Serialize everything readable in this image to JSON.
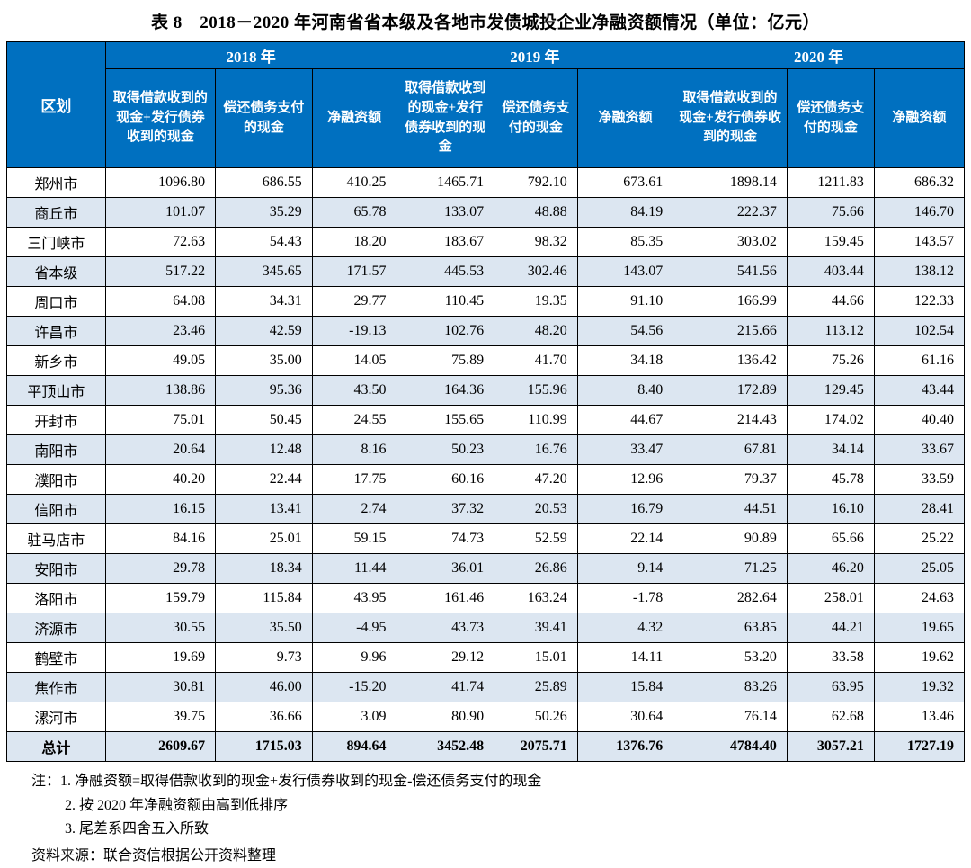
{
  "title": "表 8　2018－2020 年河南省省本级及各地市发债城投企业净融资额情况（单位：亿元）",
  "table": {
    "region_header": "区划",
    "year_groups": [
      {
        "year": "2018 年",
        "columns": [
          "取得借款收到的现金+发行债券收到的现金",
          "偿还债务支付的现金",
          "净融资额"
        ]
      },
      {
        "year": "2019 年",
        "columns": [
          "取得借款收到的现金+发行债券收到的现金",
          "偿还债务支付的现金",
          "净融资额"
        ]
      },
      {
        "year": "2020 年",
        "columns": [
          "取得借款收到的现金+发行债券收到的现金",
          "偿还债务支付的现金",
          "净融资额"
        ]
      }
    ],
    "rows": [
      {
        "region": "郑州市",
        "values": [
          "1096.80",
          "686.55",
          "410.25",
          "1465.71",
          "792.10",
          "673.61",
          "1898.14",
          "1211.83",
          "686.32"
        ]
      },
      {
        "region": "商丘市",
        "values": [
          "101.07",
          "35.29",
          "65.78",
          "133.07",
          "48.88",
          "84.19",
          "222.37",
          "75.66",
          "146.70"
        ]
      },
      {
        "region": "三门峡市",
        "values": [
          "72.63",
          "54.43",
          "18.20",
          "183.67",
          "98.32",
          "85.35",
          "303.02",
          "159.45",
          "143.57"
        ]
      },
      {
        "region": "省本级",
        "values": [
          "517.22",
          "345.65",
          "171.57",
          "445.53",
          "302.46",
          "143.07",
          "541.56",
          "403.44",
          "138.12"
        ]
      },
      {
        "region": "周口市",
        "values": [
          "64.08",
          "34.31",
          "29.77",
          "110.45",
          "19.35",
          "91.10",
          "166.99",
          "44.66",
          "122.33"
        ]
      },
      {
        "region": "许昌市",
        "values": [
          "23.46",
          "42.59",
          "-19.13",
          "102.76",
          "48.20",
          "54.56",
          "215.66",
          "113.12",
          "102.54"
        ]
      },
      {
        "region": "新乡市",
        "values": [
          "49.05",
          "35.00",
          "14.05",
          "75.89",
          "41.70",
          "34.18",
          "136.42",
          "75.26",
          "61.16"
        ]
      },
      {
        "region": "平顶山市",
        "values": [
          "138.86",
          "95.36",
          "43.50",
          "164.36",
          "155.96",
          "8.40",
          "172.89",
          "129.45",
          "43.44"
        ]
      },
      {
        "region": "开封市",
        "values": [
          "75.01",
          "50.45",
          "24.55",
          "155.65",
          "110.99",
          "44.67",
          "214.43",
          "174.02",
          "40.40"
        ]
      },
      {
        "region": "南阳市",
        "values": [
          "20.64",
          "12.48",
          "8.16",
          "50.23",
          "16.76",
          "33.47",
          "67.81",
          "34.14",
          "33.67"
        ]
      },
      {
        "region": "濮阳市",
        "values": [
          "40.20",
          "22.44",
          "17.75",
          "60.16",
          "47.20",
          "12.96",
          "79.37",
          "45.78",
          "33.59"
        ]
      },
      {
        "region": "信阳市",
        "values": [
          "16.15",
          "13.41",
          "2.74",
          "37.32",
          "20.53",
          "16.79",
          "44.51",
          "16.10",
          "28.41"
        ]
      },
      {
        "region": "驻马店市",
        "values": [
          "84.16",
          "25.01",
          "59.15",
          "74.73",
          "52.59",
          "22.14",
          "90.89",
          "65.66",
          "25.22"
        ]
      },
      {
        "region": "安阳市",
        "values": [
          "29.78",
          "18.34",
          "11.44",
          "36.01",
          "26.86",
          "9.14",
          "71.25",
          "46.20",
          "25.05"
        ]
      },
      {
        "region": "洛阳市",
        "values": [
          "159.79",
          "115.84",
          "43.95",
          "161.46",
          "163.24",
          "-1.78",
          "282.64",
          "258.01",
          "24.63"
        ]
      },
      {
        "region": "济源市",
        "values": [
          "30.55",
          "35.50",
          "-4.95",
          "43.73",
          "39.41",
          "4.32",
          "63.85",
          "44.21",
          "19.65"
        ]
      },
      {
        "region": "鹤壁市",
        "values": [
          "19.69",
          "9.73",
          "9.96",
          "29.12",
          "15.01",
          "14.11",
          "53.20",
          "33.58",
          "19.62"
        ]
      },
      {
        "region": "焦作市",
        "values": [
          "30.81",
          "46.00",
          "-15.20",
          "41.74",
          "25.89",
          "15.84",
          "83.26",
          "63.95",
          "19.32"
        ]
      },
      {
        "region": "漯河市",
        "values": [
          "39.75",
          "36.66",
          "3.09",
          "80.90",
          "50.26",
          "30.64",
          "76.14",
          "62.68",
          "13.46"
        ]
      }
    ],
    "total_row": {
      "region": "总计",
      "values": [
        "2609.67",
        "1715.03",
        "894.64",
        "3452.48",
        "2075.71",
        "1376.76",
        "4784.40",
        "3057.21",
        "1727.19"
      ]
    }
  },
  "notes": {
    "label": "注：",
    "items": [
      "1. 净融资额=取得借款收到的现金+发行债券收到的现金-偿还债务支付的现金",
      "2. 按 2020 年净融资额由高到低排序",
      "3. 尾差系四舍五入所致"
    ],
    "source": "资料来源：联合资信根据公开资料整理"
  },
  "colors": {
    "header_bg": "#0070C0",
    "header_text": "#FFFFFF",
    "alt_row_bg": "#DCE6F1",
    "border": "#000000"
  }
}
